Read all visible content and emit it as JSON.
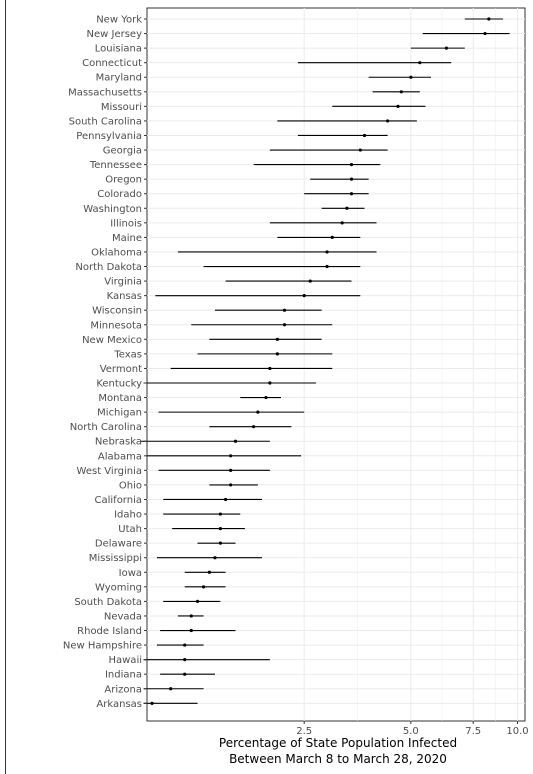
{
  "chart_data": {
    "type": "forest",
    "title": "",
    "xlabel": [
      "Percentage of State Population Infected",
      "Between March 8 to March 28, 2020"
    ],
    "ylabel": "",
    "x_scale": "log",
    "x_ticks": [
      2.5,
      5.0,
      7.5,
      10.0
    ],
    "x_tick_labels": [
      "2.5",
      "5.0",
      "7.5",
      "10.0"
    ],
    "xlim": [
      0.9,
      10.5
    ],
    "grid": true,
    "colors": {
      "panel_border": "#333333",
      "grid": "#ebebeb",
      "marks": "#000000"
    },
    "rows": [
      {
        "state": "New York",
        "estimate": 8.3,
        "lower": 7.1,
        "upper": 9.1
      },
      {
        "state": "New Jersey",
        "estimate": 8.1,
        "lower": 5.4,
        "upper": 9.5
      },
      {
        "state": "Louisiana",
        "estimate": 6.3,
        "lower": 5.0,
        "upper": 7.1
      },
      {
        "state": "Connecticut",
        "estimate": 5.3,
        "lower": 2.4,
        "upper": 6.5
      },
      {
        "state": "Maryland",
        "estimate": 5.0,
        "lower": 3.8,
        "upper": 5.7
      },
      {
        "state": "Massachusetts",
        "estimate": 4.7,
        "lower": 3.9,
        "upper": 5.3
      },
      {
        "state": "Missouri",
        "estimate": 4.6,
        "lower": 3.0,
        "upper": 5.5
      },
      {
        "state": "South Carolina",
        "estimate": 4.3,
        "lower": 2.1,
        "upper": 5.2
      },
      {
        "state": "Pennsylvania",
        "estimate": 3.7,
        "lower": 2.4,
        "upper": 4.3
      },
      {
        "state": "Georgia",
        "estimate": 3.6,
        "lower": 2.0,
        "upper": 4.3
      },
      {
        "state": "Tennessee",
        "estimate": 3.4,
        "lower": 1.8,
        "upper": 4.1
      },
      {
        "state": "Oregon",
        "estimate": 3.4,
        "lower": 2.6,
        "upper": 3.8
      },
      {
        "state": "Colorado",
        "estimate": 3.4,
        "lower": 2.5,
        "upper": 3.8
      },
      {
        "state": "Washington",
        "estimate": 3.3,
        "lower": 2.8,
        "upper": 3.7
      },
      {
        "state": "Illinois",
        "estimate": 3.2,
        "lower": 2.0,
        "upper": 4.0
      },
      {
        "state": "Maine",
        "estimate": 3.0,
        "lower": 2.1,
        "upper": 3.6
      },
      {
        "state": "Oklahoma",
        "estimate": 2.9,
        "lower": 1.1,
        "upper": 4.0
      },
      {
        "state": "North Dakota",
        "estimate": 2.9,
        "lower": 1.3,
        "upper": 3.6
      },
      {
        "state": "Virginia",
        "estimate": 2.6,
        "lower": 1.5,
        "upper": 3.4
      },
      {
        "state": "Kansas",
        "estimate": 2.5,
        "lower": 0.95,
        "upper": 3.6
      },
      {
        "state": "Wisconsin",
        "estimate": 2.2,
        "lower": 1.4,
        "upper": 2.8
      },
      {
        "state": "Minnesota",
        "estimate": 2.2,
        "lower": 1.2,
        "upper": 3.0
      },
      {
        "state": "New Mexico",
        "estimate": 2.1,
        "lower": 1.35,
        "upper": 2.8
      },
      {
        "state": "Texas",
        "estimate": 2.1,
        "lower": 1.25,
        "upper": 3.0
      },
      {
        "state": "Vermont",
        "estimate": 2.0,
        "lower": 1.05,
        "upper": 3.0
      },
      {
        "state": "Kentucky",
        "estimate": 2.0,
        "lower": 0.88,
        "upper": 2.7
      },
      {
        "state": "Montana",
        "estimate": 1.95,
        "lower": 1.65,
        "upper": 2.15
      },
      {
        "state": "Michigan",
        "estimate": 1.85,
        "lower": 0.97,
        "upper": 2.5
      },
      {
        "state": "North Carolina",
        "estimate": 1.8,
        "lower": 1.35,
        "upper": 2.3
      },
      {
        "state": "Nebraska",
        "estimate": 1.6,
        "lower": 0.86,
        "upper": 2.0
      },
      {
        "state": "Alabama",
        "estimate": 1.55,
        "lower": 0.9,
        "upper": 2.45
      },
      {
        "state": "West Virginia",
        "estimate": 1.55,
        "lower": 0.97,
        "upper": 2.0
      },
      {
        "state": "Ohio",
        "estimate": 1.55,
        "lower": 1.35,
        "upper": 1.85
      },
      {
        "state": "California",
        "estimate": 1.5,
        "lower": 1.0,
        "upper": 1.9
      },
      {
        "state": "Idaho",
        "estimate": 1.45,
        "lower": 1.0,
        "upper": 1.65
      },
      {
        "state": "Utah",
        "estimate": 1.45,
        "lower": 1.06,
        "upper": 1.7
      },
      {
        "state": "Delaware",
        "estimate": 1.45,
        "lower": 1.25,
        "upper": 1.6
      },
      {
        "state": "Mississippi",
        "estimate": 1.4,
        "lower": 0.96,
        "upper": 1.9
      },
      {
        "state": "Iowa",
        "estimate": 1.35,
        "lower": 1.15,
        "upper": 1.5
      },
      {
        "state": "Wyoming",
        "estimate": 1.3,
        "lower": 1.15,
        "upper": 1.5
      },
      {
        "state": "South Dakota",
        "estimate": 1.25,
        "lower": 1.0,
        "upper": 1.45
      },
      {
        "state": "Nevada",
        "estimate": 1.2,
        "lower": 1.1,
        "upper": 1.3
      },
      {
        "state": "Rhode Island",
        "estimate": 1.2,
        "lower": 0.98,
        "upper": 1.6
      },
      {
        "state": "New Hampshire",
        "estimate": 1.15,
        "lower": 0.96,
        "upper": 1.3
      },
      {
        "state": "Hawaii",
        "estimate": 1.15,
        "lower": 0.88,
        "upper": 2.0
      },
      {
        "state": "Indiana",
        "estimate": 1.15,
        "lower": 0.98,
        "upper": 1.4
      },
      {
        "state": "Arizona",
        "estimate": 1.05,
        "lower": 0.88,
        "upper": 1.3
      },
      {
        "state": "Arkansas",
        "estimate": 0.93,
        "lower": 0.88,
        "upper": 1.25
      }
    ]
  }
}
